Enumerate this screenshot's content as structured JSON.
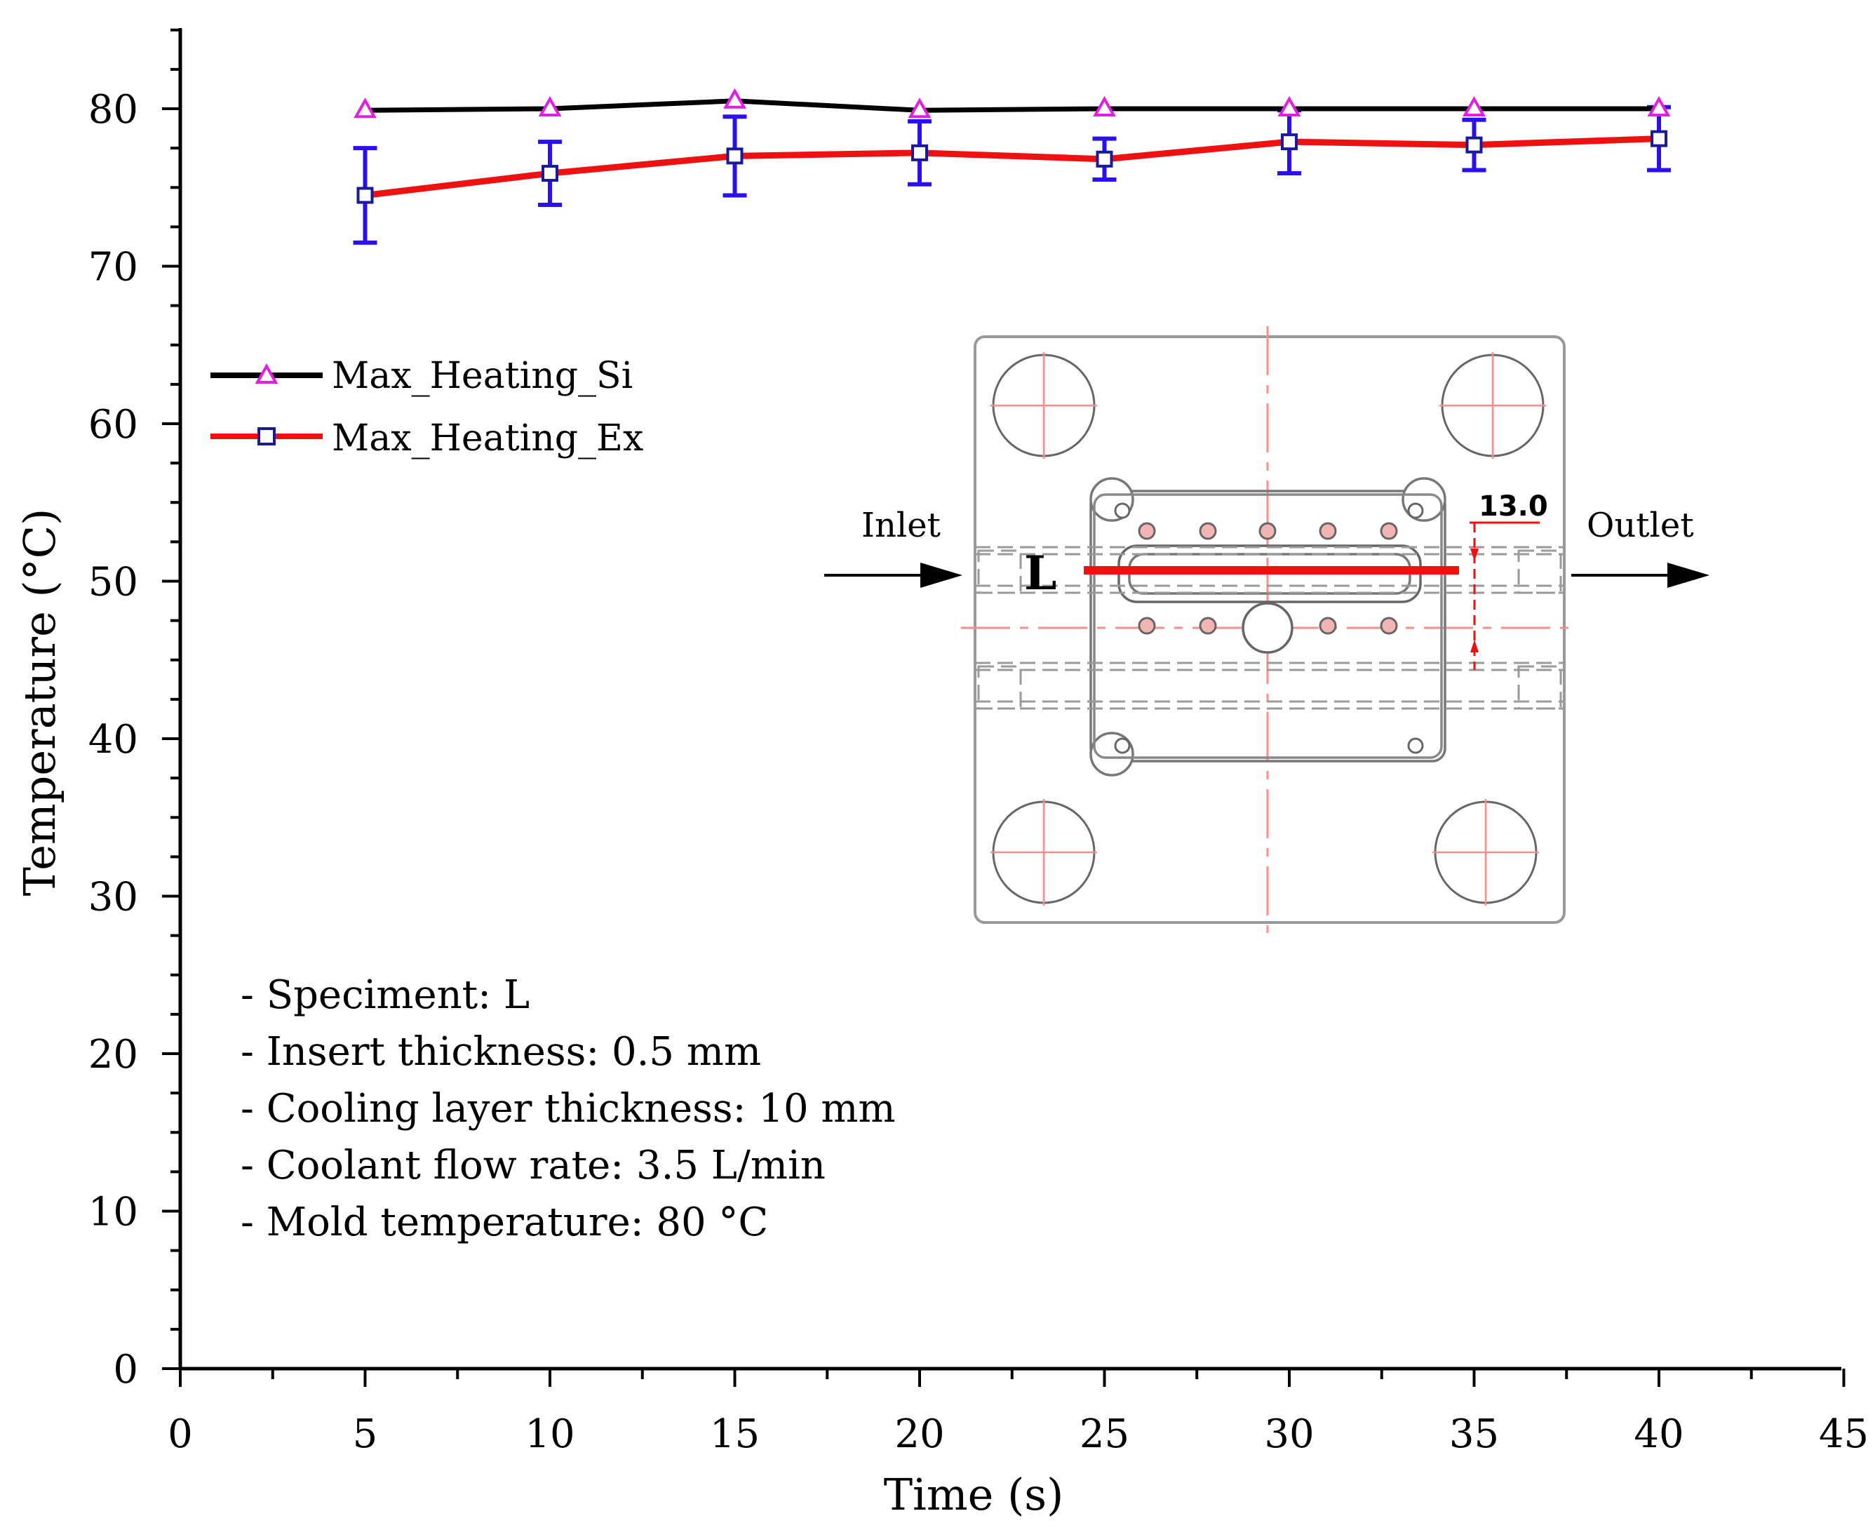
{
  "chart_data": {
    "type": "line",
    "title": "",
    "xlabel": "Time (s)",
    "ylabel": "Temperature (°C)",
    "xlim": [
      0,
      45
    ],
    "ylim": [
      0,
      85
    ],
    "x_ticks": [
      0,
      5,
      10,
      15,
      20,
      25,
      30,
      35,
      40,
      45
    ],
    "y_ticks": [
      0,
      10,
      20,
      30,
      40,
      50,
      60,
      70,
      80
    ],
    "legend_position": "upper-left",
    "series": [
      {
        "name": "Max_Heating_Si",
        "line_color": "#000000",
        "marker": "triangle",
        "marker_color": "#e020e0",
        "x": [
          5,
          10,
          15,
          20,
          25,
          30,
          35,
          40
        ],
        "values": [
          79.9,
          80.0,
          80.5,
          79.9,
          80.0,
          80.0,
          80.0,
          80.0
        ]
      },
      {
        "name": "Max_Heating_Ex",
        "line_color": "#ee1111",
        "marker": "square",
        "marker_color": "#1a1a99",
        "error_color": "#2a10ee",
        "x": [
          5,
          10,
          15,
          20,
          25,
          30,
          35,
          40
        ],
        "values": [
          74.5,
          75.9,
          77.0,
          77.2,
          76.8,
          77.9,
          77.7,
          78.1
        ],
        "errors": [
          3.0,
          2.0,
          2.5,
          2.0,
          1.3,
          2.0,
          1.6,
          2.0
        ]
      }
    ],
    "annotations": [
      "- Speciment: L",
      "- Insert thickness: 0.5 mm",
      "- Cooling layer thickness: 10  mm",
      "- Coolant flow rate: 3.5 L/min",
      "- Mold temperature: 80 °C"
    ],
    "inset": {
      "inlet_label": "Inlet",
      "outlet_label": "Outlet",
      "specimen_label": "L",
      "dimension_label": "13.0"
    }
  }
}
